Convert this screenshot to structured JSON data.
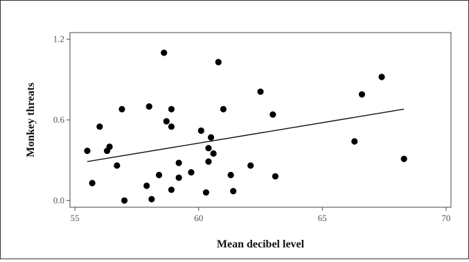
{
  "chart_data": {
    "type": "scatter",
    "title": "",
    "xlabel": "Mean decibel level",
    "ylabel": "Monkey threats",
    "xlim": [
      54.8,
      70.2
    ],
    "ylim": [
      -0.05,
      1.25
    ],
    "x_ticks": [
      55,
      60,
      65,
      70
    ],
    "x_tick_labels": [
      "55",
      "60",
      "65",
      "70"
    ],
    "y_ticks": [
      0.0,
      0.6,
      1.2
    ],
    "y_tick_labels": [
      "0.0",
      "0.6",
      "1.2"
    ],
    "grid": false,
    "legend": "none",
    "point_color": "#000000",
    "points": [
      {
        "x": 55.5,
        "y": 0.37
      },
      {
        "x": 55.7,
        "y": 0.13
      },
      {
        "x": 56.0,
        "y": 0.55
      },
      {
        "x": 56.3,
        "y": 0.37
      },
      {
        "x": 56.4,
        "y": 0.4
      },
      {
        "x": 56.7,
        "y": 0.26
      },
      {
        "x": 56.9,
        "y": 0.68
      },
      {
        "x": 57.0,
        "y": 0.0
      },
      {
        "x": 57.9,
        "y": 0.11
      },
      {
        "x": 58.0,
        "y": 0.7
      },
      {
        "x": 58.1,
        "y": 0.01
      },
      {
        "x": 58.4,
        "y": 0.19
      },
      {
        "x": 58.6,
        "y": 1.1
      },
      {
        "x": 58.7,
        "y": 0.59
      },
      {
        "x": 58.9,
        "y": 0.55
      },
      {
        "x": 58.9,
        "y": 0.68
      },
      {
        "x": 58.9,
        "y": 0.08
      },
      {
        "x": 59.2,
        "y": 0.28
      },
      {
        "x": 59.2,
        "y": 0.17
      },
      {
        "x": 59.7,
        "y": 0.21
      },
      {
        "x": 60.1,
        "y": 0.52
      },
      {
        "x": 60.3,
        "y": 0.06
      },
      {
        "x": 60.4,
        "y": 0.39
      },
      {
        "x": 60.4,
        "y": 0.29
      },
      {
        "x": 60.5,
        "y": 0.47
      },
      {
        "x": 60.6,
        "y": 0.35
      },
      {
        "x": 60.8,
        "y": 1.03
      },
      {
        "x": 61.0,
        "y": 0.68
      },
      {
        "x": 61.3,
        "y": 0.19
      },
      {
        "x": 61.4,
        "y": 0.07
      },
      {
        "x": 62.1,
        "y": 0.26
      },
      {
        "x": 62.5,
        "y": 0.81
      },
      {
        "x": 63.0,
        "y": 0.64
      },
      {
        "x": 63.1,
        "y": 0.18
      },
      {
        "x": 66.3,
        "y": 0.44
      },
      {
        "x": 66.6,
        "y": 0.79
      },
      {
        "x": 67.4,
        "y": 0.92
      },
      {
        "x": 68.3,
        "y": 0.31
      }
    ],
    "trend_line": {
      "x": [
        55.5,
        68.3
      ],
      "y": [
        0.29,
        0.68
      ]
    }
  }
}
